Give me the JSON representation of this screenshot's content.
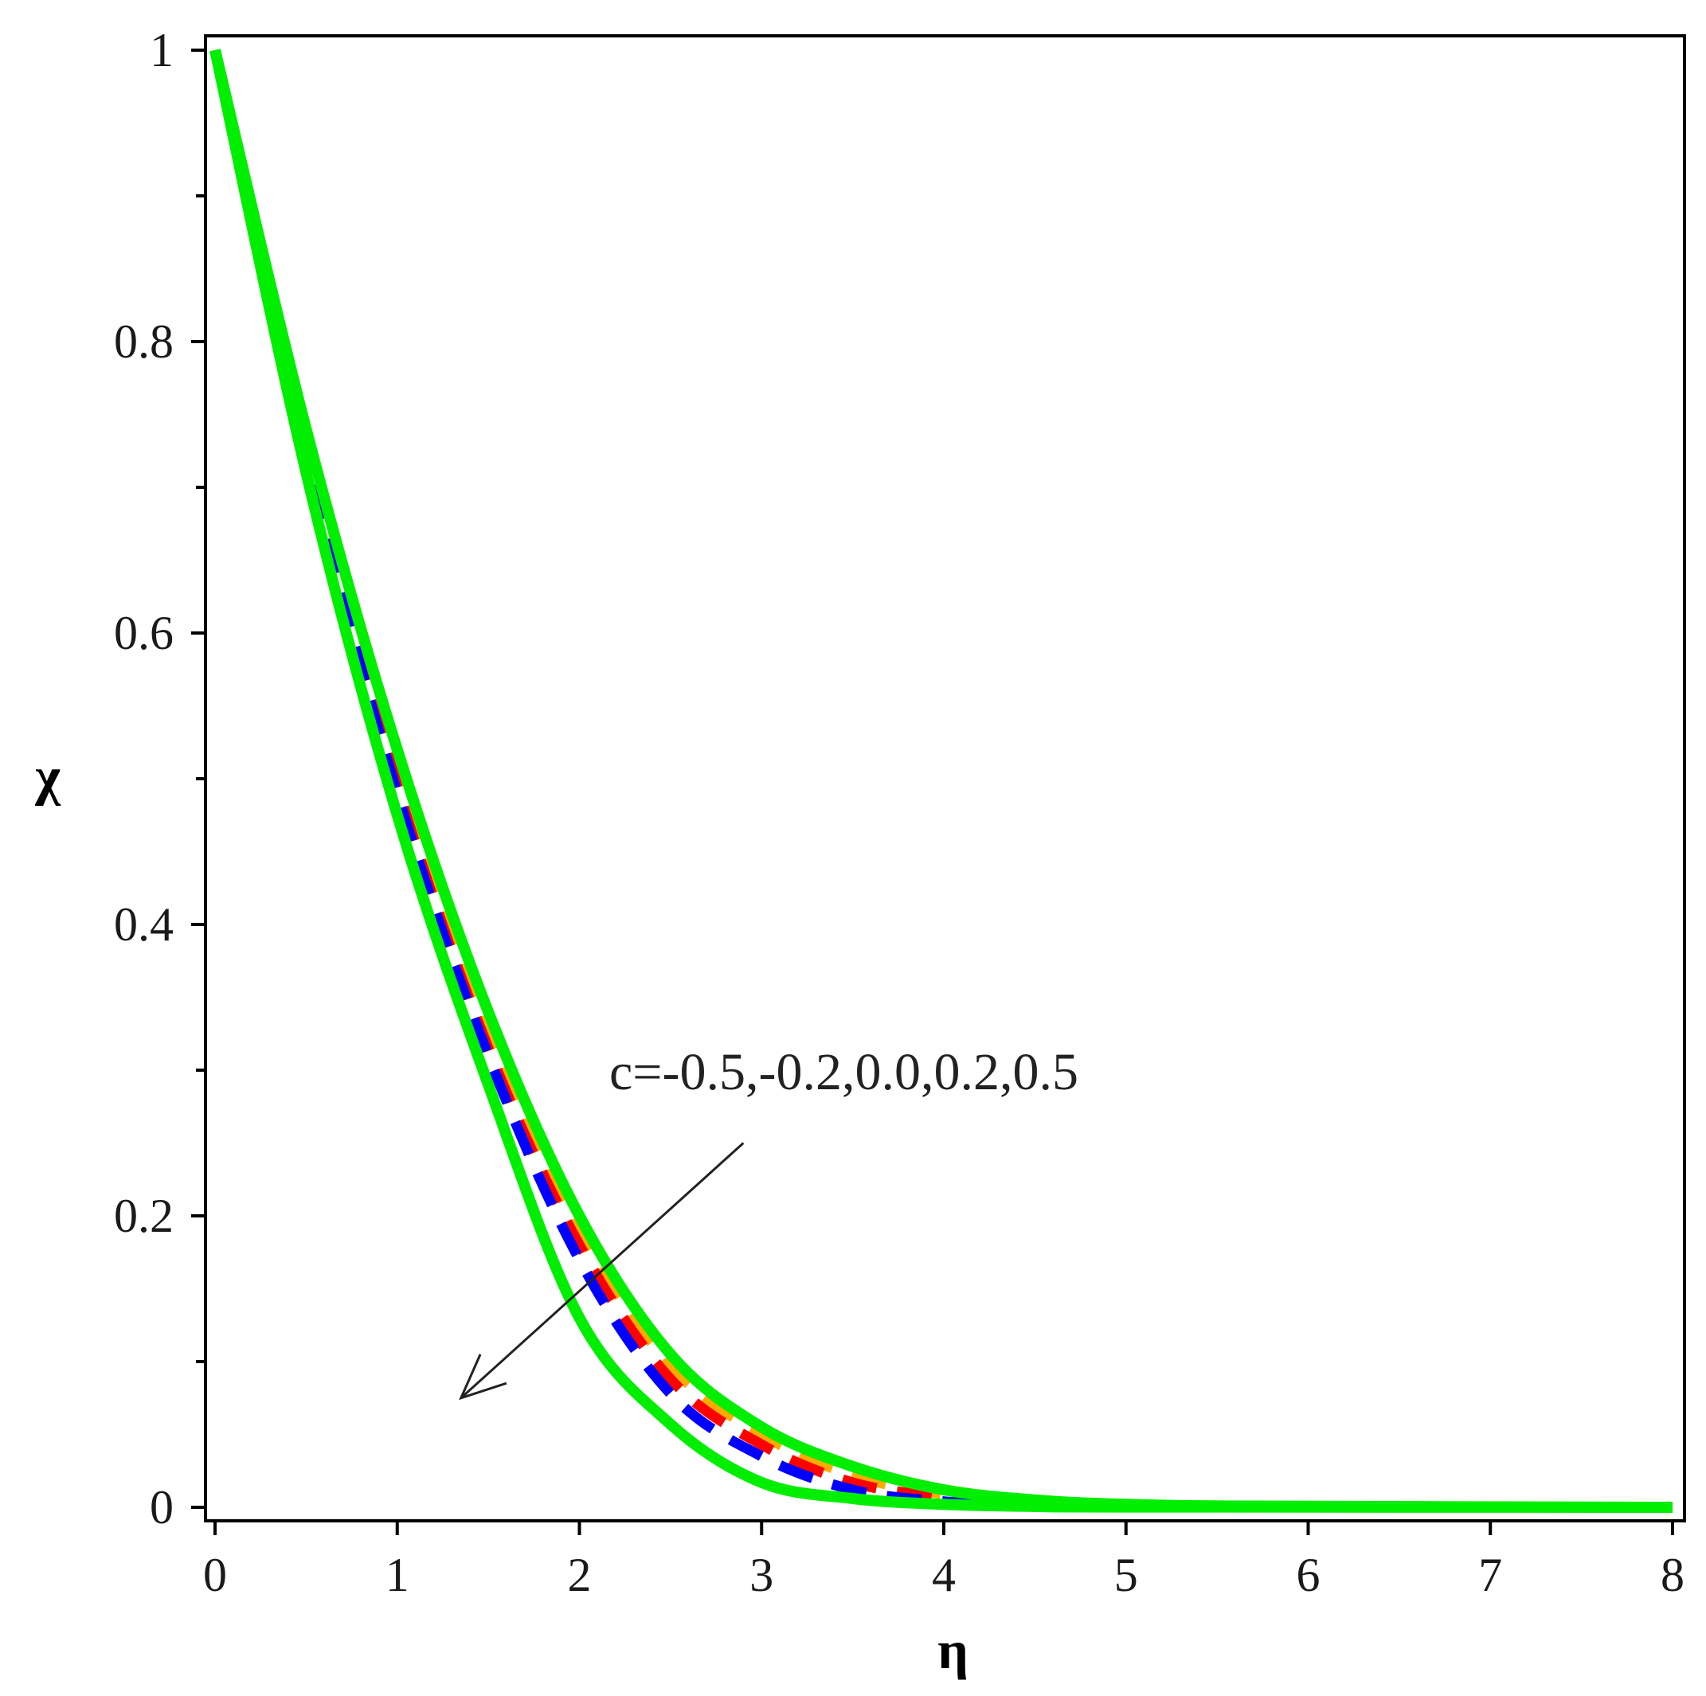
{
  "chart_data": {
    "type": "line",
    "title": "",
    "xlabel": "η",
    "ylabel": "χ",
    "xlim": [
      0,
      8
    ],
    "ylim": [
      0,
      1
    ],
    "x_ticks": [
      0,
      1,
      2,
      3,
      4,
      5,
      6,
      7,
      8
    ],
    "x_tick_labels": [
      "0",
      "1",
      "2",
      "3",
      "4",
      "5",
      "6",
      "7",
      "8"
    ],
    "y_ticks": [
      0,
      0.2,
      0.4,
      0.6,
      0.8,
      1
    ],
    "y_tick_labels": [
      "0",
      "0.2",
      "0.4",
      "0.6",
      "0.8",
      "1"
    ],
    "grid": false,
    "legend": "none",
    "annotation": {
      "text": "c=-0.5,-0.2,0.0,0.2,0.5",
      "arrow_from": [
        2.9,
        0.25
      ],
      "arrow_to": [
        1.35,
        0.075
      ]
    },
    "series": [
      {
        "color": "#00ee00",
        "style": "solid",
        "points": [
          [
            0,
            1.0
          ],
          [
            0.5,
            0.74
          ],
          [
            1,
            0.52
          ],
          [
            1.5,
            0.34
          ],
          [
            2,
            0.2
          ],
          [
            2.5,
            0.105
          ],
          [
            3,
            0.055
          ],
          [
            3.5,
            0.028
          ],
          [
            4,
            0.012
          ],
          [
            4.5,
            0.005
          ],
          [
            5,
            0.002
          ],
          [
            5.7,
            0.0008
          ],
          [
            8,
            0
          ]
        ]
      },
      {
        "color": "#ffaa00",
        "style": "dashed",
        "points": [
          [
            0,
            1.0
          ],
          [
            0.5,
            0.73
          ],
          [
            1,
            0.5
          ],
          [
            1.5,
            0.32
          ],
          [
            2,
            0.19
          ],
          [
            2.5,
            0.097
          ],
          [
            3,
            0.05
          ],
          [
            3.5,
            0.022
          ],
          [
            4,
            0.009
          ],
          [
            4.5,
            0.003
          ],
          [
            5,
            0.0012
          ],
          [
            5.3,
            0.0005
          ]
        ]
      },
      {
        "color": "#ff0000",
        "style": "dashed",
        "points": [
          [
            0,
            1.0
          ],
          [
            0.5,
            0.725
          ],
          [
            1,
            0.495
          ],
          [
            1.5,
            0.315
          ],
          [
            2,
            0.18
          ],
          [
            2.5,
            0.088
          ],
          [
            3,
            0.043
          ],
          [
            3.5,
            0.017
          ],
          [
            4,
            0.007
          ],
          [
            4.5,
            0.002
          ],
          [
            4.9,
            0.0008
          ]
        ]
      },
      {
        "color": "#0000ff",
        "style": "dashed",
        "points": [
          [
            0,
            1.0
          ],
          [
            0.5,
            0.72
          ],
          [
            1,
            0.49
          ],
          [
            1.5,
            0.31
          ],
          [
            2,
            0.17
          ],
          [
            2.5,
            0.078
          ],
          [
            3,
            0.035
          ],
          [
            3.5,
            0.012
          ],
          [
            4,
            0.004
          ],
          [
            4.5,
            0.001
          ]
        ]
      },
      {
        "color": "#00ee00",
        "style": "solid",
        "points": [
          [
            0,
            1.0
          ],
          [
            0.5,
            0.71
          ],
          [
            1,
            0.475
          ],
          [
            1.5,
            0.29
          ],
          [
            2,
            0.13
          ],
          [
            2.5,
            0.057
          ],
          [
            3,
            0.017
          ],
          [
            3.5,
            0.006
          ],
          [
            4,
            0.002
          ],
          [
            4.5,
            0.0006
          ],
          [
            5,
            0.0002
          ],
          [
            8,
            0
          ]
        ]
      }
    ]
  }
}
